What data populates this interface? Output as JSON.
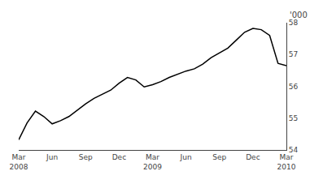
{
  "chart_data": {
    "type": "line",
    "categories": [
      "Mar\n2008",
      null,
      null,
      null,
      "Jun",
      null,
      null,
      null,
      "Sep",
      null,
      null,
      null,
      "Dec",
      null,
      null,
      null,
      "Mar\n2009",
      null,
      null,
      null,
      "Jun",
      null,
      null,
      null,
      "Sep",
      null,
      null,
      null,
      "Dec",
      null,
      null,
      null,
      "Mar\n2010"
    ],
    "values": [
      54.32,
      54.85,
      55.22,
      55.05,
      54.82,
      54.92,
      55.05,
      55.25,
      55.45,
      55.62,
      55.75,
      55.88,
      56.1,
      56.28,
      56.2,
      55.98,
      56.05,
      56.15,
      56.28,
      56.38,
      56.48,
      56.55,
      56.7,
      56.9,
      57.05,
      57.2,
      57.45,
      57.7,
      57.82,
      57.78,
      57.6,
      56.72,
      56.65
    ],
    "color": "#000000",
    "ylabel": "'000",
    "ylim": [
      54,
      58
    ],
    "yticks": [
      54,
      55,
      56,
      57,
      58
    ],
    "grid": false
  }
}
